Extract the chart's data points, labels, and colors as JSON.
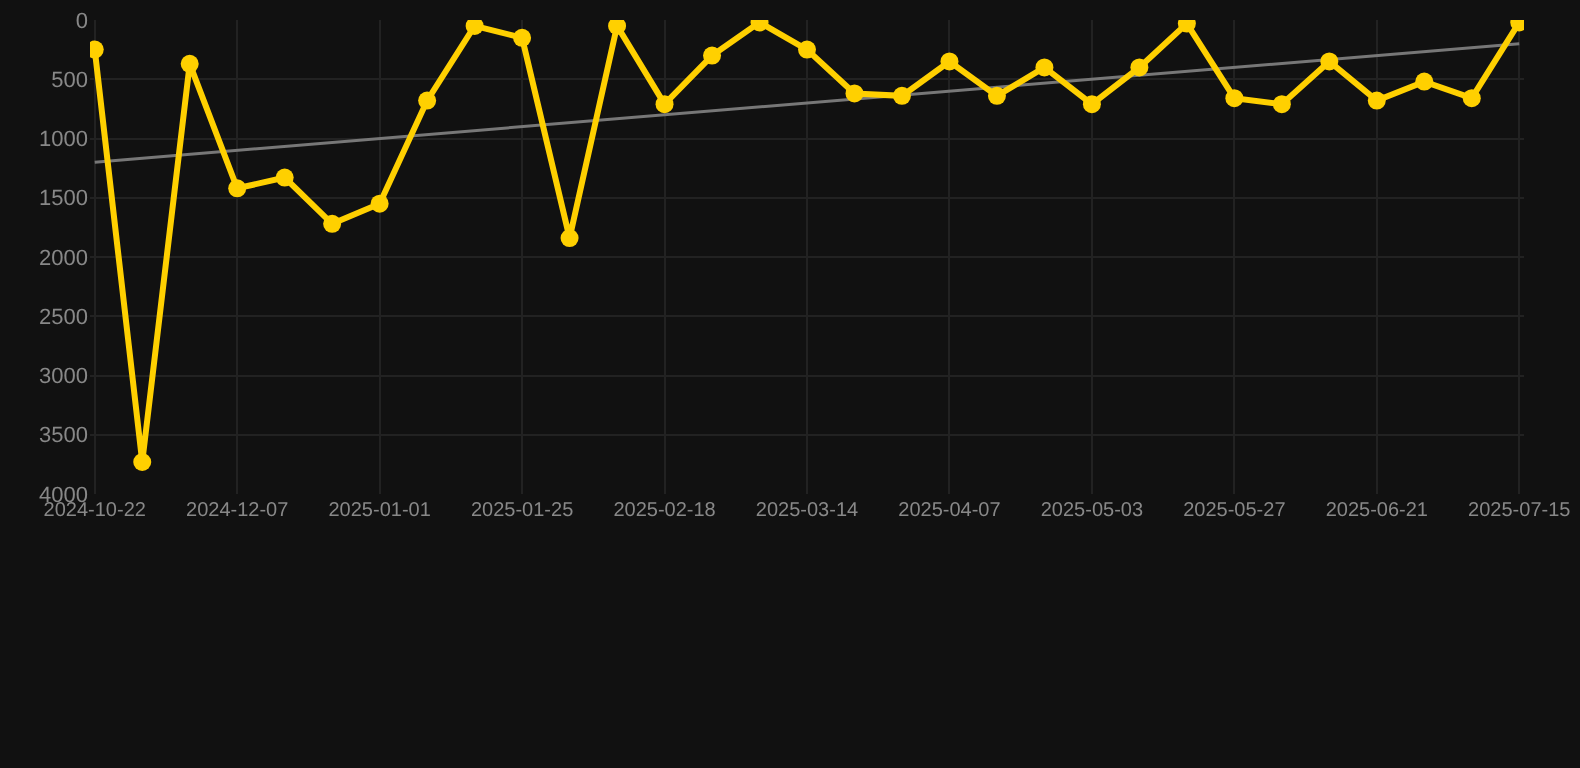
{
  "chart_data": {
    "type": "line",
    "categories": [
      "2024-10-22",
      null,
      null,
      "2024-12-07",
      null,
      null,
      "2025-01-01",
      null,
      null,
      "2025-01-25",
      null,
      null,
      "2025-02-18",
      null,
      null,
      "2025-03-14",
      null,
      null,
      "2025-04-07",
      null,
      null,
      "2025-05-03",
      null,
      null,
      "2025-05-27",
      null,
      null,
      "2025-06-21",
      null,
      null,
      "2025-07-15"
    ],
    "series": [
      {
        "color": "#ffd000",
        "values": [
          250,
          3730,
          370,
          1420,
          1330,
          1720,
          1550,
          680,
          50,
          150,
          1840,
          50,
          710,
          300,
          20,
          250,
          620,
          640,
          350,
          640,
          400,
          710,
          400,
          30,
          660,
          710,
          350,
          680,
          520,
          660,
          20
        ]
      },
      {
        "type": "line",
        "color": "#777777",
        "marker": "none",
        "values": [
          1200,
          null,
          null,
          null,
          null,
          null,
          null,
          null,
          null,
          null,
          null,
          null,
          null,
          null,
          null,
          null,
          null,
          null,
          null,
          null,
          null,
          null,
          null,
          null,
          null,
          null,
          null,
          null,
          null,
          null,
          200
        ]
      }
    ],
    "ylim": [
      4000,
      0
    ],
    "yticks": [
      0,
      500,
      1000,
      1500,
      2000,
      2500,
      3000,
      3500,
      4000
    ],
    "grid": true,
    "marker": "circle",
    "line_style": "solid"
  }
}
